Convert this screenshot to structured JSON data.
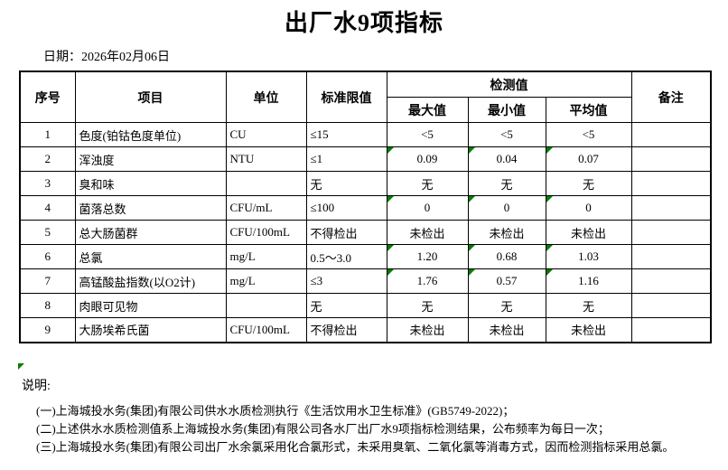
{
  "title": "出厂水9项指标",
  "date": {
    "label": "日期：",
    "value": "2026年02月06日"
  },
  "table": {
    "headers": {
      "no": "序号",
      "item": "项目",
      "unit": "单位",
      "limit": "标准限值",
      "detection": "检测值",
      "max": "最大值",
      "min": "最小值",
      "avg": "平均值",
      "remark": "备注"
    },
    "rows": [
      {
        "no": "1",
        "item": "色度(铂钴色度单位)",
        "unit": "CU",
        "limit": "≤15",
        "max": "<5",
        "min": "<5",
        "avg": "<5",
        "remark": "",
        "flag": false
      },
      {
        "no": "2",
        "item": "浑浊度",
        "unit": "NTU",
        "limit": "≤1",
        "max": "0.09",
        "min": "0.04",
        "avg": "0.07",
        "remark": "",
        "flag": true
      },
      {
        "no": "3",
        "item": "臭和味",
        "unit": "",
        "limit": "无",
        "max": "无",
        "min": "无",
        "avg": "无",
        "remark": "",
        "flag": false
      },
      {
        "no": "4",
        "item": "菌落总数",
        "unit": "CFU/mL",
        "limit": "≤100",
        "max": "0",
        "min": "0",
        "avg": "0",
        "remark": "",
        "flag": true
      },
      {
        "no": "5",
        "item": "总大肠菌群",
        "unit": "CFU/100mL",
        "limit": "不得检出",
        "max": "未检出",
        "min": "未检出",
        "avg": "未检出",
        "remark": "",
        "flag": false
      },
      {
        "no": "6",
        "item": "总氯",
        "unit": "mg/L",
        "limit": "0.5～3.0",
        "max": "1.20",
        "min": "0.68",
        "avg": "1.03",
        "remark": "",
        "flag": true
      },
      {
        "no": "7",
        "item": "高锰酸盐指数(以O2计)",
        "unit": "mg/L",
        "limit": "≤3",
        "max": "1.76",
        "min": "0.57",
        "avg": "1.16",
        "remark": "",
        "flag": true
      },
      {
        "no": "8",
        "item": "肉眼可见物",
        "unit": "",
        "limit": "无",
        "max": "无",
        "min": "无",
        "avg": "无",
        "remark": "",
        "flag": false
      },
      {
        "no": "9",
        "item": "大肠埃希氏菌",
        "unit": "CFU/100mL",
        "limit": "不得检出",
        "max": "未检出",
        "min": "未检出",
        "avg": "未检出",
        "remark": "",
        "flag": false
      }
    ]
  },
  "notes": {
    "label": "说明:",
    "lines": [
      "(一)上海城投水务(集团)有限公司供水水质检测执行《生活饮用水卫生标准》(GB5749-2022)；",
      "(二)上述供水水质检测值系上海城投水务(集团)有限公司各水厂出厂水9项指标检测结果，公布频率为每日一次；",
      "(三)上海城投水务(集团)有限公司出厂水余氯采用化合氯形式，未采用臭氧、二氧化氯等消毒方式，因而检测指标采用总氯。"
    ]
  },
  "colors": {
    "flag_green": "#008000",
    "border": "#000000",
    "text": "#000000",
    "background": "#ffffff"
  }
}
